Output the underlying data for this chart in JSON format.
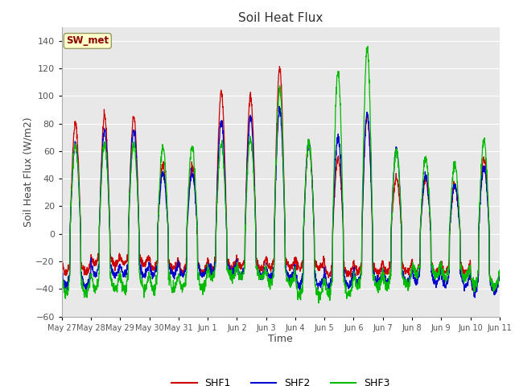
{
  "title": "Soil Heat Flux",
  "xlabel": "Time",
  "ylabel": "Soil Heat Flux (W/m2)",
  "ylim": [
    -60,
    150
  ],
  "yticks": [
    -60,
    -40,
    -20,
    0,
    20,
    40,
    60,
    80,
    100,
    120,
    140
  ],
  "fig_bg_color": "#ffffff",
  "plot_bg_color": "#e8e8e8",
  "grid_color": "#ffffff",
  "colors": {
    "SHF1": "#cc0000",
    "SHF2": "#0000cc",
    "SHF3": "#00bb00"
  },
  "legend_label": "SW_met",
  "x_tick_labels": [
    "May 27",
    "May 28",
    "May 29",
    "May 30",
    "May 31",
    "Jun 1",
    "Jun 2",
    "Jun 3",
    "Jun 4",
    "Jun 5",
    "Jun 6",
    "Jun 7",
    "Jun 8",
    "Jun 9",
    "Jun 10",
    "Jun 11"
  ],
  "num_days": 15,
  "points_per_day": 144,
  "day_peaks_shf1": [
    80,
    85,
    85,
    50,
    50,
    103,
    100,
    120,
    65,
    55,
    85,
    40,
    40,
    35,
    55
  ],
  "day_peaks_shf2": [
    65,
    75,
    75,
    44,
    44,
    82,
    85,
    90,
    65,
    70,
    87,
    62,
    42,
    35,
    48
  ],
  "day_peaks_shf3": [
    65,
    65,
    65,
    63,
    63,
    65,
    70,
    106,
    65,
    118,
    135,
    60,
    55,
    50,
    68
  ],
  "night_shf1": [
    -28,
    -22,
    -22,
    -25,
    -28,
    -25,
    -25,
    -25,
    -25,
    -30,
    -28,
    -28,
    -28,
    -28,
    -40
  ],
  "night_shf2": [
    -38,
    -30,
    -30,
    -30,
    -30,
    -28,
    -30,
    -32,
    -38,
    -38,
    -35,
    -35,
    -35,
    -38,
    -42
  ],
  "night_shf3": [
    -43,
    -40,
    -40,
    -40,
    -40,
    -32,
    -32,
    -36,
    -45,
    -44,
    -38,
    -38,
    -30,
    -32,
    -38
  ]
}
